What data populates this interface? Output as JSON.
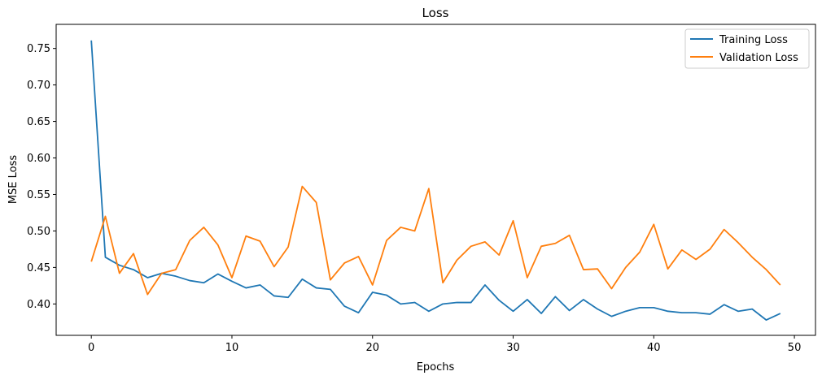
{
  "chart_data": {
    "type": "line",
    "title": "Loss",
    "xlabel": "Epochs",
    "ylabel": "MSE Loss",
    "xlim": [
      -2.5,
      51.5
    ],
    "ylim": [
      0.357,
      0.783
    ],
    "xticks": [
      0,
      10,
      20,
      30,
      40,
      50
    ],
    "yticks": [
      0.4,
      0.45,
      0.5,
      0.55,
      0.6,
      0.65,
      0.7,
      0.75
    ],
    "grid": false,
    "legend_position": "top-right",
    "x": [
      0,
      1,
      2,
      3,
      4,
      5,
      6,
      7,
      8,
      9,
      10,
      11,
      12,
      13,
      14,
      15,
      16,
      17,
      18,
      19,
      20,
      21,
      22,
      23,
      24,
      25,
      26,
      27,
      28,
      29,
      30,
      31,
      32,
      33,
      34,
      35,
      36,
      37,
      38,
      39,
      40,
      41,
      42,
      43,
      44,
      45,
      46,
      47,
      48,
      49
    ],
    "series": [
      {
        "name": "Training Loss",
        "color": "#1f77b4",
        "values": [
          0.761,
          0.464,
          0.453,
          0.447,
          0.436,
          0.442,
          0.438,
          0.432,
          0.429,
          0.441,
          0.431,
          0.422,
          0.426,
          0.411,
          0.409,
          0.434,
          0.422,
          0.42,
          0.397,
          0.388,
          0.416,
          0.412,
          0.4,
          0.402,
          0.39,
          0.4,
          0.402,
          0.402,
          0.426,
          0.405,
          0.39,
          0.406,
          0.387,
          0.41,
          0.391,
          0.406,
          0.393,
          0.383,
          0.39,
          0.395,
          0.395,
          0.39,
          0.388,
          0.388,
          0.386,
          0.399,
          0.39,
          0.393,
          0.378,
          0.387
        ]
      },
      {
        "name": "Validation Loss",
        "color": "#ff7f0e",
        "values": [
          0.458,
          0.52,
          0.442,
          0.469,
          0.413,
          0.442,
          0.447,
          0.487,
          0.505,
          0.481,
          0.436,
          0.493,
          0.486,
          0.451,
          0.478,
          0.561,
          0.539,
          0.433,
          0.456,
          0.465,
          0.426,
          0.487,
          0.505,
          0.5,
          0.558,
          0.429,
          0.46,
          0.479,
          0.485,
          0.467,
          0.514,
          0.436,
          0.479,
          0.483,
          0.494,
          0.447,
          0.448,
          0.421,
          0.45,
          0.471,
          0.509,
          0.448,
          0.474,
          0.461,
          0.475,
          0.502,
          0.484,
          0.464,
          0.447,
          0.426
        ]
      }
    ]
  }
}
